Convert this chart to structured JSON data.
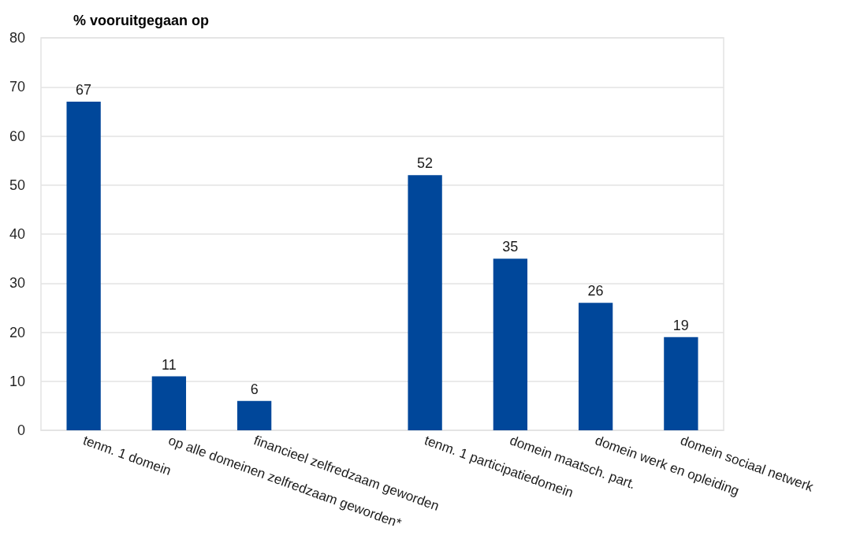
{
  "chart_data": {
    "type": "bar",
    "title": "% vooruitgegaan op",
    "categories": [
      "tenm. 1 domein",
      "op alle domeinen zelfredzaam geworden*",
      "financieel zelfredzaam geworden",
      null,
      "tenm. 1 participatiedomein",
      "domein maatsch. part.",
      "domein werk en opleiding",
      "domein sociaal netwerk"
    ],
    "values": [
      67,
      11,
      6,
      null,
      52,
      35,
      26,
      19
    ],
    "color": "#00479a",
    "ylim": [
      0,
      80
    ],
    "yticks": [
      0,
      10,
      20,
      30,
      40,
      50,
      60,
      70,
      80
    ],
    "grid": "y",
    "data_labels": true
  }
}
